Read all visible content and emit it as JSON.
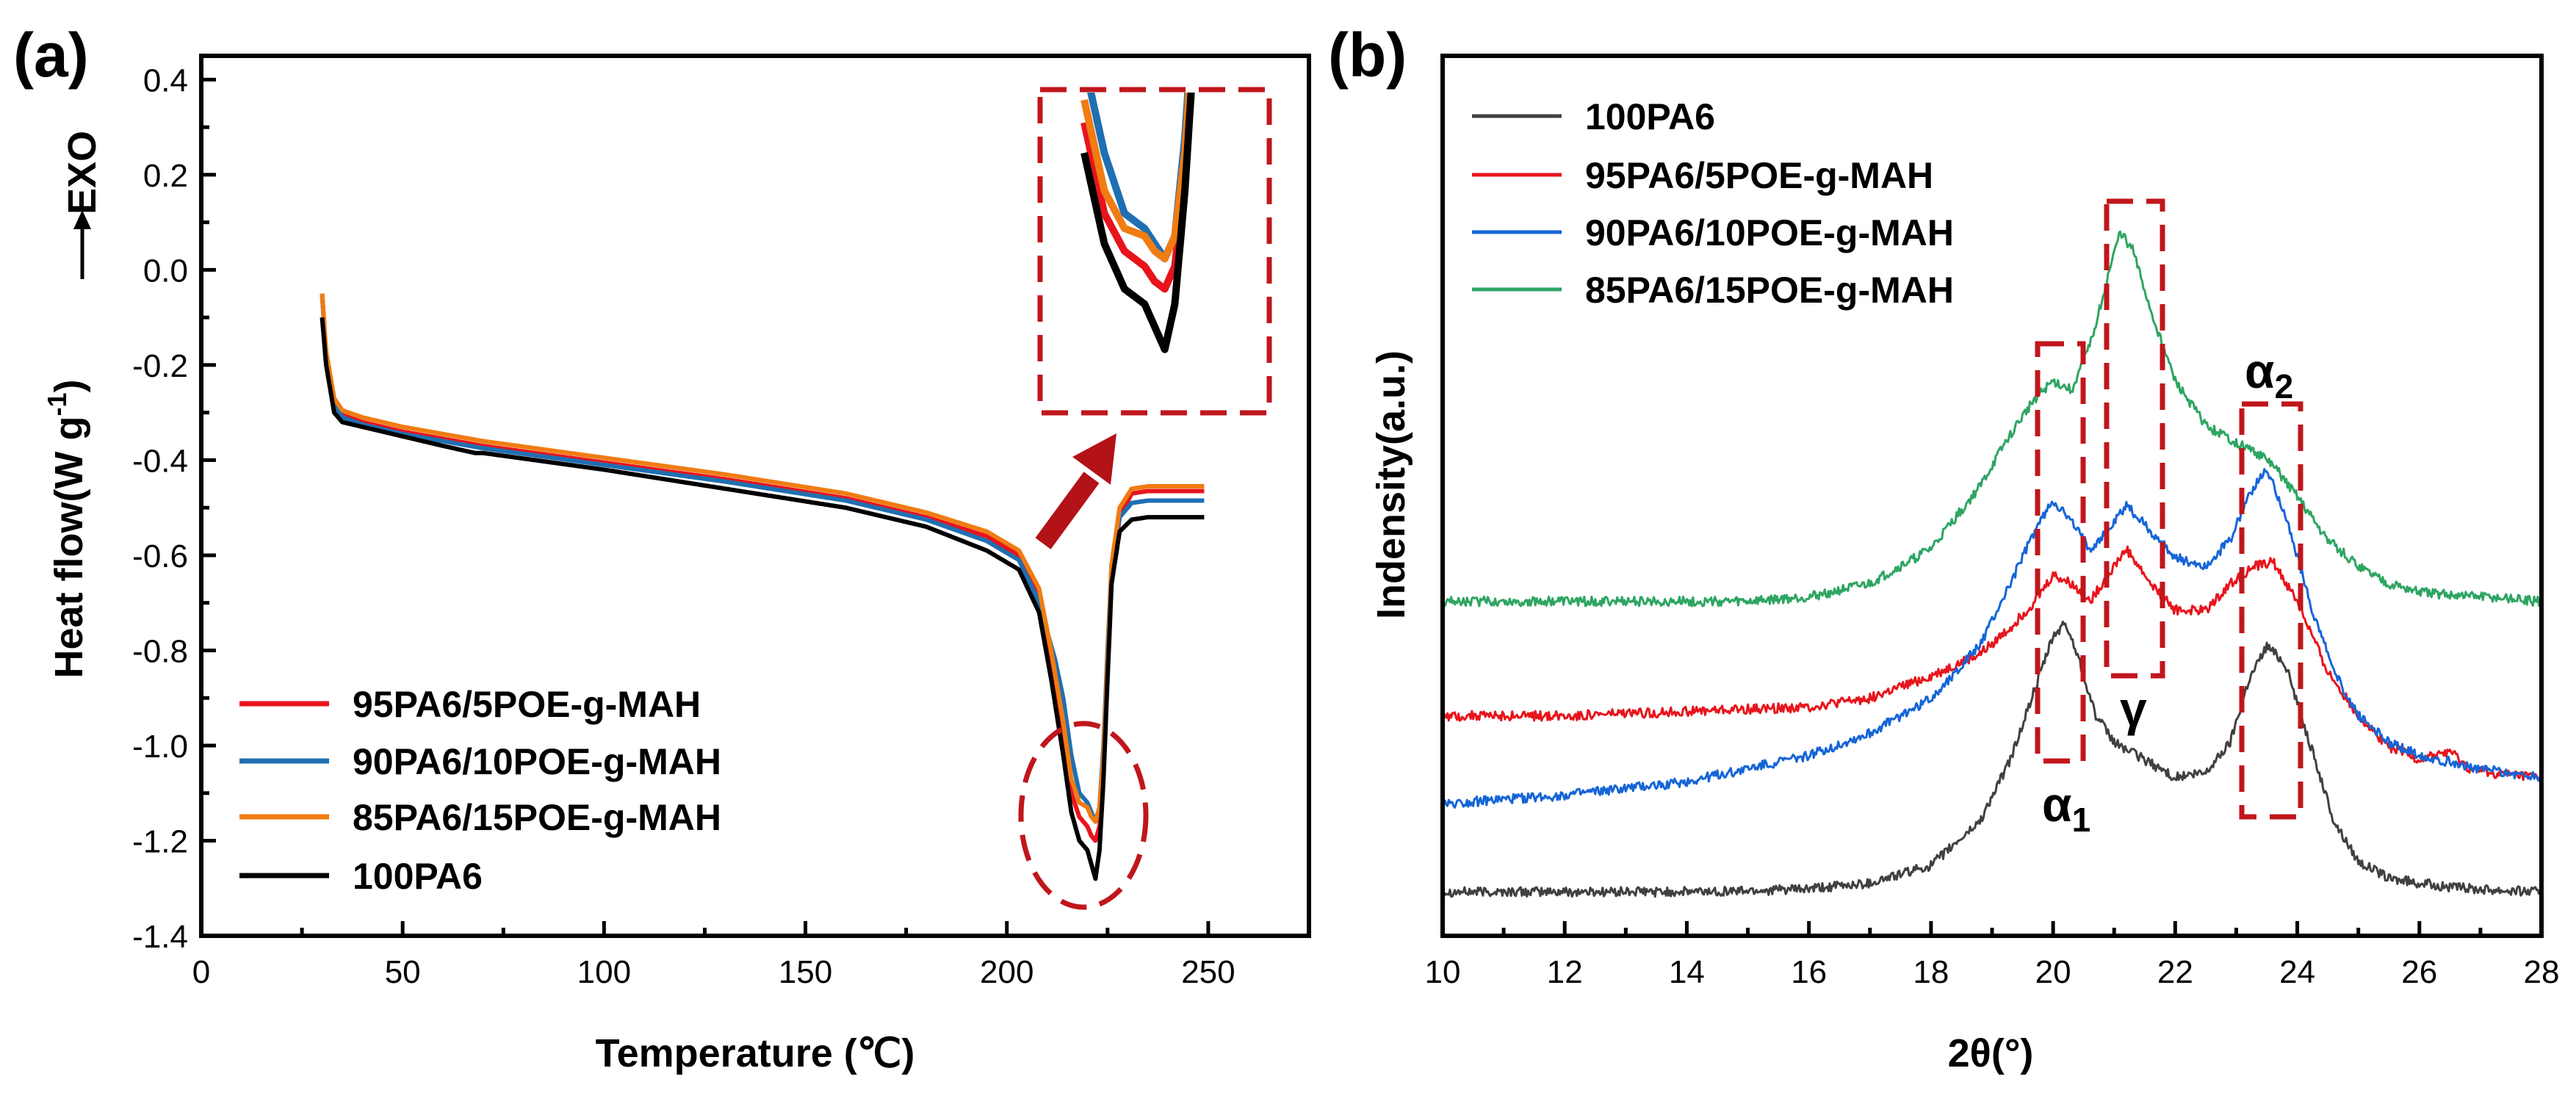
{
  "chart_data": [
    {
      "panel": "(a)",
      "type": "line",
      "title": "",
      "xlabel": "Temperature (℃)",
      "ylabel": "Heat flow(W g-1)",
      "ylabel_main": "Heat flow(W g",
      "ylabel_sup": "-1",
      "ylabel_close": ")",
      "exo_label": "EXO",
      "xlim": [
        0,
        275
      ],
      "ylim": [
        -1.4,
        0.45
      ],
      "xticks": [
        0,
        50,
        100,
        150,
        200,
        250
      ],
      "yticks": [
        0.4,
        0.2,
        0.0,
        -0.2,
        -0.4,
        -0.6,
        -0.8,
        -1.0,
        -1.2,
        -1.4
      ],
      "xtick_labels": [
        "0",
        "50",
        "100",
        "150",
        "200",
        "250"
      ],
      "ytick_labels": [
        "0.4",
        "0.2",
        "0.0",
        "-0.2",
        "-0.4",
        "-0.6",
        "-0.8",
        "-1.0",
        "-1.2",
        "-1.4"
      ],
      "legend_position": "bottom-left",
      "series": [
        {
          "name": "95PA6/5POE-g-MAH",
          "color": "#e8141c",
          "x": [
            30,
            31,
            33,
            35,
            40,
            50,
            70,
            100,
            130,
            160,
            180,
            195,
            203,
            208,
            211,
            214,
            216,
            218,
            220,
            221,
            222,
            223,
            224,
            225,
            226,
            228,
            231,
            235,
            240,
            249
          ],
          "y": [
            -0.05,
            -0.18,
            -0.28,
            -0.305,
            -0.32,
            -0.34,
            -0.37,
            -0.405,
            -0.44,
            -0.48,
            -0.52,
            -0.56,
            -0.6,
            -0.68,
            -0.82,
            -0.98,
            -1.1,
            -1.15,
            -1.17,
            -1.19,
            -1.2,
            -1.17,
            -1.05,
            -0.85,
            -0.65,
            -0.52,
            -0.47,
            -0.465,
            -0.465,
            -0.465
          ]
        },
        {
          "name": "90PA6/10POE-g-MAH",
          "color": "#1f6fb2",
          "x": [
            30,
            31,
            33,
            35,
            40,
            50,
            70,
            100,
            130,
            160,
            180,
            195,
            203,
            207,
            210,
            212,
            214,
            216,
            218,
            219,
            220,
            221,
            222,
            223,
            224,
            225,
            226,
            228,
            231,
            235,
            240,
            249
          ],
          "y": [
            -0.05,
            -0.18,
            -0.28,
            -0.31,
            -0.325,
            -0.345,
            -0.375,
            -0.41,
            -0.445,
            -0.485,
            -0.525,
            -0.57,
            -0.61,
            -0.68,
            -0.76,
            -0.82,
            -0.9,
            -1.02,
            -1.1,
            -1.11,
            -1.12,
            -1.14,
            -1.16,
            -1.13,
            -1.0,
            -0.8,
            -0.62,
            -0.52,
            -0.49,
            -0.485,
            -0.485,
            -0.485
          ]
        },
        {
          "name": "85PA6/15POE-g-MAH",
          "color": "#f07c12",
          "x": [
            30,
            31,
            33,
            35,
            40,
            50,
            70,
            100,
            130,
            160,
            180,
            195,
            203,
            208,
            211,
            214,
            216,
            218,
            220,
            221,
            222,
            223,
            224,
            225,
            226,
            228,
            231,
            235,
            240,
            249
          ],
          "y": [
            -0.05,
            -0.17,
            -0.27,
            -0.295,
            -0.31,
            -0.33,
            -0.36,
            -0.395,
            -0.43,
            -0.47,
            -0.51,
            -0.55,
            -0.59,
            -0.67,
            -0.8,
            -0.95,
            -1.07,
            -1.12,
            -1.13,
            -1.15,
            -1.16,
            -1.13,
            -1.02,
            -0.82,
            -0.62,
            -0.5,
            -0.46,
            -0.455,
            -0.455,
            -0.455
          ]
        },
        {
          "name": "100PA6",
          "color": "#000000",
          "x": [
            30,
            31,
            33,
            35,
            40,
            50,
            60,
            68,
            70,
            100,
            130,
            160,
            180,
            195,
            203,
            208,
            211,
            214,
            216,
            218,
            220,
            221,
            222,
            223,
            224,
            225,
            226,
            228,
            231,
            235,
            240,
            249
          ],
          "y": [
            -0.1,
            -0.2,
            -0.3,
            -0.32,
            -0.33,
            -0.35,
            -0.37,
            -0.385,
            -0.385,
            -0.42,
            -0.46,
            -0.5,
            -0.54,
            -0.59,
            -0.63,
            -0.72,
            -0.86,
            -1.02,
            -1.14,
            -1.2,
            -1.22,
            -1.25,
            -1.28,
            -1.22,
            -1.07,
            -0.86,
            -0.66,
            -0.55,
            -0.525,
            -0.52,
            -0.52,
            -0.52
          ]
        }
      ]
    },
    {
      "panel": "(b)",
      "type": "line",
      "title": "",
      "xlabel": "2θ(°)",
      "ylabel": "Indensity(a.u.)",
      "xlim": [
        10,
        28
      ],
      "ylim": [
        0,
        100
      ],
      "xticks": [
        10,
        12,
        14,
        16,
        18,
        20,
        22,
        24,
        26,
        28
      ],
      "xtick_labels": [
        "10",
        "12",
        "14",
        "16",
        "18",
        "20",
        "22",
        "24",
        "26",
        "28"
      ],
      "legend_position": "top-left",
      "annotations": {
        "alpha1_letter": "α",
        "alpha1_sub": "1",
        "gamma": "γ",
        "alpha2_letter": "α",
        "alpha2_sub": "2"
      },
      "series": [
        {
          "name": "100PA6",
          "color": "#404040",
          "x": [
            10,
            12,
            14,
            16,
            17,
            18,
            18.8,
            19.3,
            19.7,
            20.0,
            20.2,
            20.4,
            20.7,
            21.0,
            21.5,
            22.0,
            22.5,
            22.9,
            23.2,
            23.5,
            23.8,
            24.2,
            24.6,
            25.0,
            25.5,
            26.5,
            28
          ],
          "y": [
            5,
            5,
            5,
            5.3,
            6,
            8,
            13,
            20,
            28,
            34,
            35.5,
            32,
            25,
            22,
            20,
            18,
            18.5,
            22,
            29,
            33,
            31,
            22,
            13,
            8.5,
            6.5,
            5.5,
            5
          ]
        },
        {
          "name": "95PA6/5POE-g-MAH",
          "color": "#e8141c",
          "x": [
            10,
            12,
            14,
            16,
            17,
            18,
            18.8,
            19.3,
            19.7,
            20.0,
            20.3,
            20.6,
            20.9,
            21.2,
            21.6,
            22.0,
            22.5,
            22.9,
            23.3,
            23.6,
            24.0,
            24.5,
            25.0,
            25.5,
            26.0,
            26.5,
            26.8,
            27.2,
            28
          ],
          "y": [
            25,
            25,
            25.5,
            26,
            27,
            29.5,
            32,
            35,
            38,
            41,
            40,
            38,
            41,
            44,
            40,
            37,
            37,
            40,
            42,
            42.5,
            38,
            30,
            25,
            21.5,
            20,
            21,
            19,
            18.5,
            18
          ]
        },
        {
          "name": "90PA6/10POE-g-MAH",
          "color": "#1565d8",
          "x": [
            10,
            11,
            12,
            14,
            15,
            16,
            17,
            18,
            18.8,
            19.3,
            19.7,
            20.0,
            20.3,
            20.6,
            20.9,
            21.2,
            21.6,
            22.0,
            22.5,
            22.9,
            23.2,
            23.5,
            23.8,
            24.2,
            24.6,
            25.0,
            25.5,
            26,
            27,
            28
          ],
          "y": [
            15,
            15.5,
            16,
            17.5,
            19,
            20.5,
            23,
            27,
            33,
            40,
            46,
            49.5,
            47,
            44,
            46,
            49,
            46,
            43,
            42,
            45,
            50,
            53,
            48,
            38,
            30,
            25,
            22,
            20.5,
            19,
            18
          ]
        },
        {
          "name": "85PA6/15POE-g-MAH",
          "color": "#2ea562",
          "x": [
            10,
            12,
            14,
            15,
            16,
            17,
            18,
            18.8,
            19.3,
            19.7,
            20.0,
            20.3,
            20.6,
            20.9,
            21.1,
            21.3,
            21.6,
            22.0,
            22.5,
            23.0,
            23.3,
            23.6,
            24.0,
            24.5,
            25.0,
            25.5,
            26,
            27,
            28
          ],
          "y": [
            38,
            38,
            38,
            38,
            38.5,
            40,
            44,
            51,
            57,
            61,
            63,
            62,
            67,
            75,
            80,
            78,
            71,
            63,
            58,
            56,
            55,
            53.5,
            50,
            45,
            42,
            40,
            39,
            38.5,
            38
          ]
        }
      ]
    }
  ],
  "panels": {
    "a": {
      "label": "(a)",
      "legend": [
        "95PA6/5POE-g-MAH",
        "90PA6/10POE-g-MAH",
        "85PA6/15POE-g-MAH",
        "100PA6"
      ]
    },
    "b": {
      "label": "(b)",
      "legend": [
        "100PA6",
        "95PA6/5POE-g-MAH",
        "90PA6/10POE-g-MAH",
        "85PA6/15POE-g-MAH"
      ]
    }
  },
  "colors": {
    "annotation": "#c0161c",
    "axis": "#000000"
  }
}
